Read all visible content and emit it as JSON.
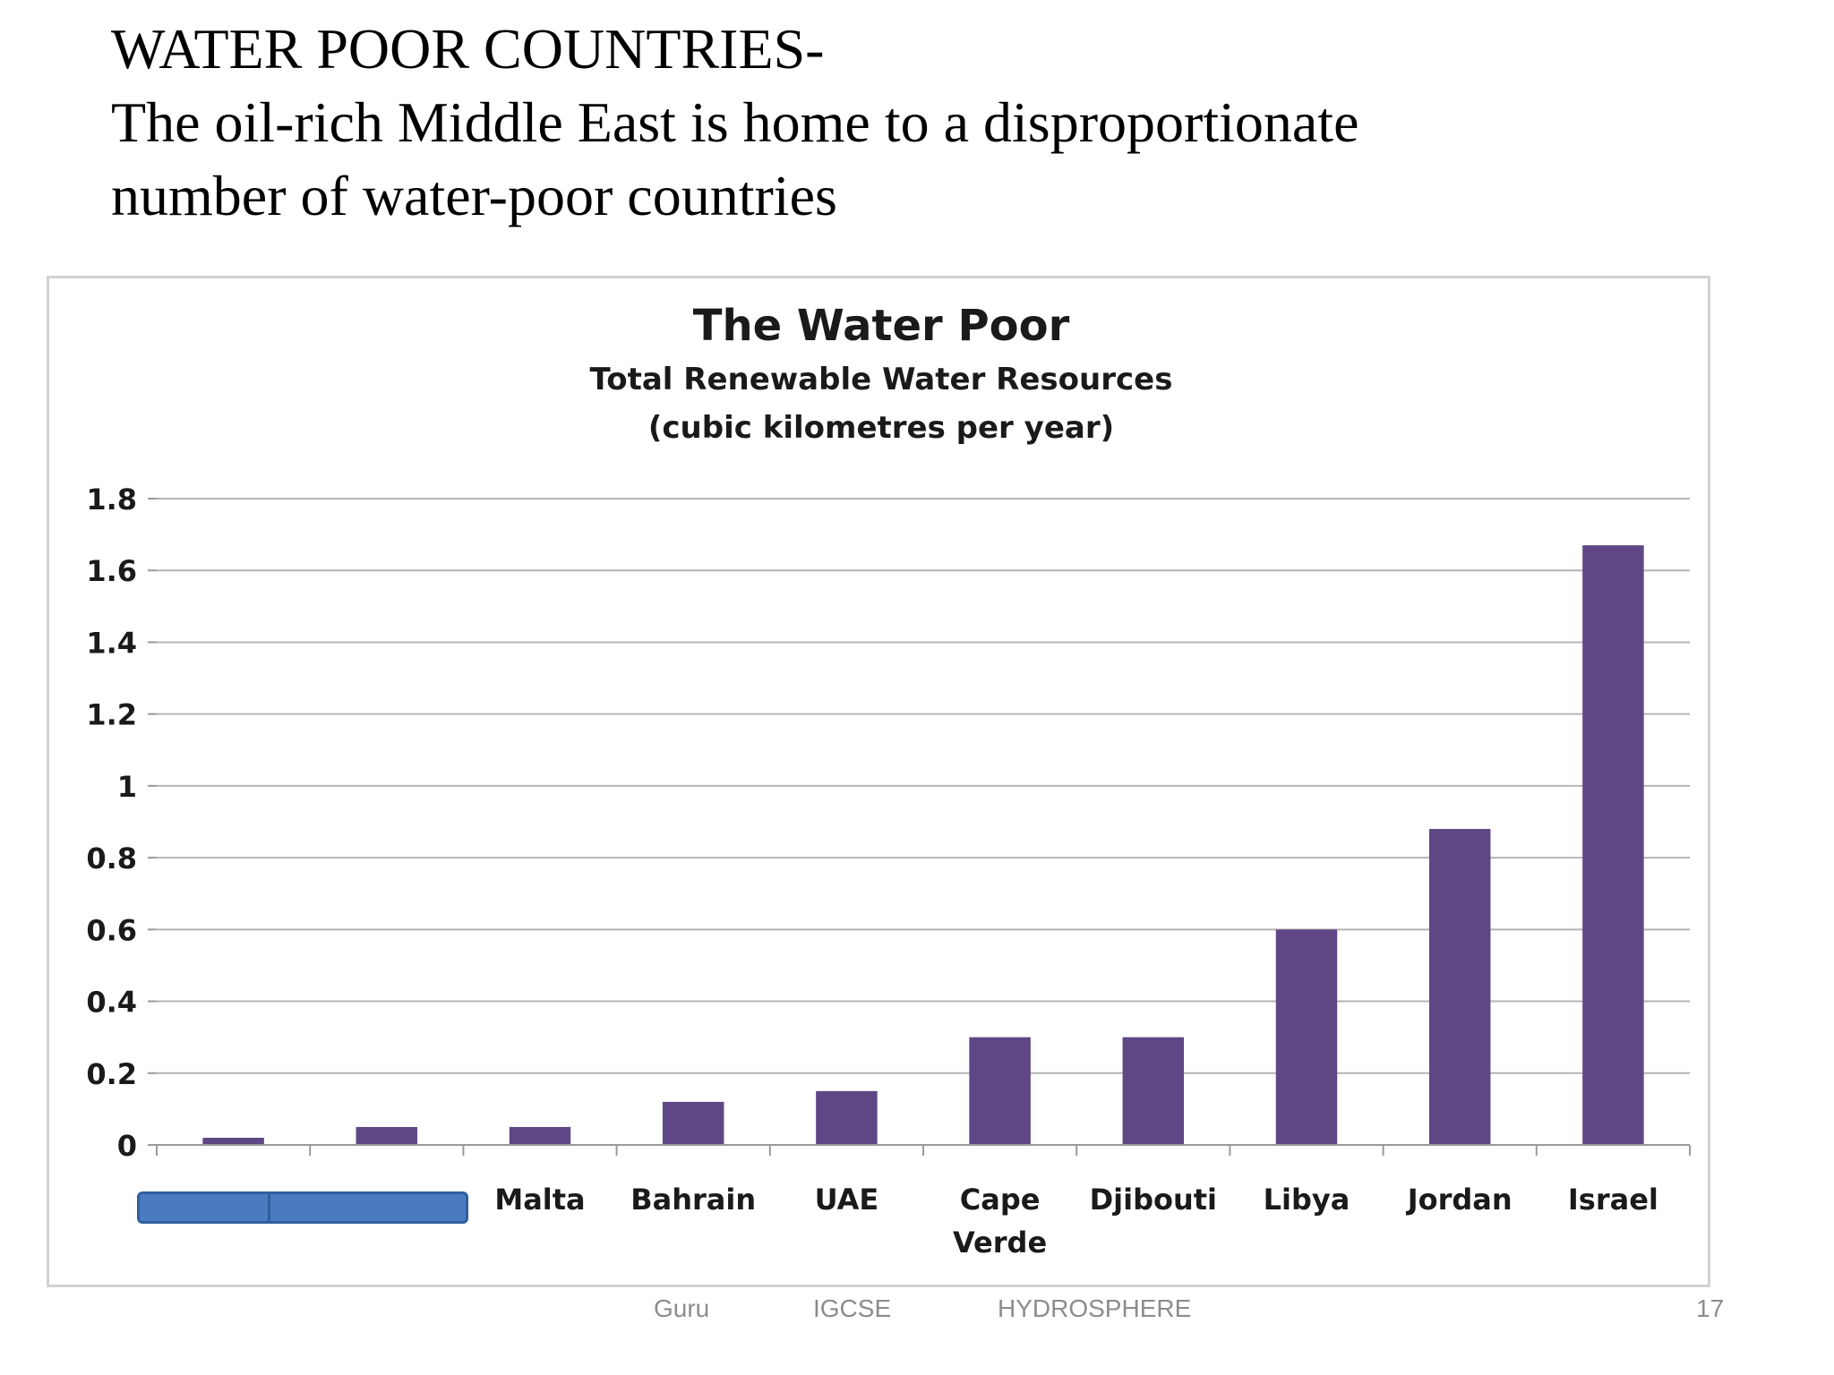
{
  "slide": {
    "title_line1": "WATER POOR COUNTRIES-",
    "title_line2": "The oil-rich Middle East is home to a disproportionate",
    "title_line3": "number of water-poor countries"
  },
  "footer": {
    "left": "Guru",
    "middle": "IGCSE",
    "right": "HYDROSPHERE",
    "page_number": "17"
  },
  "colors": {
    "bar": "#5f4785",
    "gridline": "#b4b4b4",
    "axis": "#9a9a9a",
    "text": "#1a1a1a",
    "redaction_fill": "#4a7bc0"
  },
  "chart_data": {
    "type": "bar",
    "title": "The Water Poor",
    "subtitle_line1": "Total Renewable Water Resources",
    "subtitle_line2": "(cubic kilometres per year)",
    "categories": [
      {
        "lines": []
      },
      {
        "lines": []
      },
      {
        "lines": [
          "Malta"
        ]
      },
      {
        "lines": [
          "Bahrain"
        ]
      },
      {
        "lines": [
          "UAE"
        ]
      },
      {
        "lines": [
          "Cape",
          "Verde"
        ]
      },
      {
        "lines": [
          "Djibouti"
        ]
      },
      {
        "lines": [
          "Libya"
        ]
      },
      {
        "lines": [
          "Jordan"
        ]
      },
      {
        "lines": [
          "Israel"
        ]
      }
    ],
    "values": [
      0.02,
      0.05,
      0.05,
      0.12,
      0.15,
      0.3,
      0.3,
      0.6,
      0.88,
      1.67
    ],
    "yticks": [
      "0",
      "0.2",
      "0.4",
      "0.6",
      "0.8",
      "1",
      "1.2",
      "1.4",
      "1.6",
      "1.8"
    ],
    "ylim": [
      0,
      1.8
    ],
    "grid": true,
    "legend": "none"
  }
}
